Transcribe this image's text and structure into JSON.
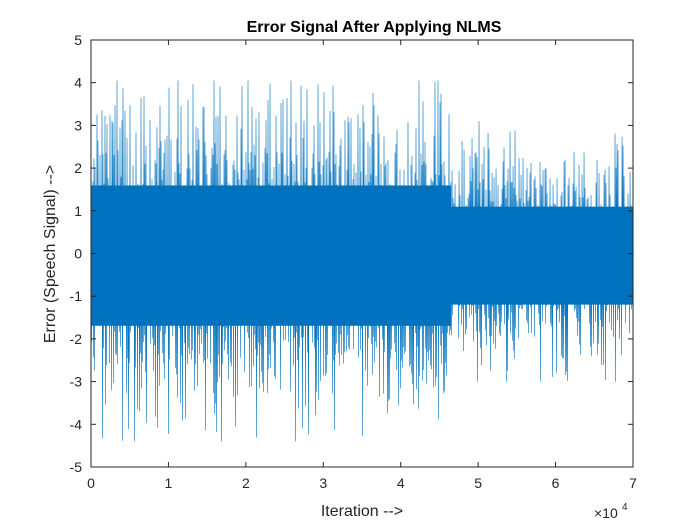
{
  "chart_data": {
    "type": "line",
    "title": "Error  Signal After Applying NLMS",
    "xlabel": "Iteration -->",
    "ylabel": "Error (Speech Signal) -->",
    "x_exponent": {
      "base": "×10",
      "power": "4"
    },
    "xlim": [
      0,
      7
    ],
    "ylim": [
      -5,
      5
    ],
    "x_ticks": [
      "0",
      "1",
      "2",
      "3",
      "4",
      "5",
      "6",
      "7"
    ],
    "y_ticks": [
      "5",
      "4",
      "3",
      "2",
      "1",
      "0",
      "-1",
      "-2",
      "-3",
      "-4",
      "-5"
    ],
    "grid": false,
    "box": true,
    "series": [
      {
        "color": "#0072BD",
        "segments": [
          {
            "x_range": [
              0,
              4.65
            ],
            "envelope_upper": 2.6,
            "envelope_lower": -2.7,
            "peak_max": 4.05,
            "peak_min": -4.4
          },
          {
            "x_range": [
              4.65,
              7.0
            ],
            "envelope_upper": 1.8,
            "envelope_lower": -1.9,
            "peak_max": 3.1,
            "peak_min": -3.0
          }
        ]
      }
    ]
  }
}
